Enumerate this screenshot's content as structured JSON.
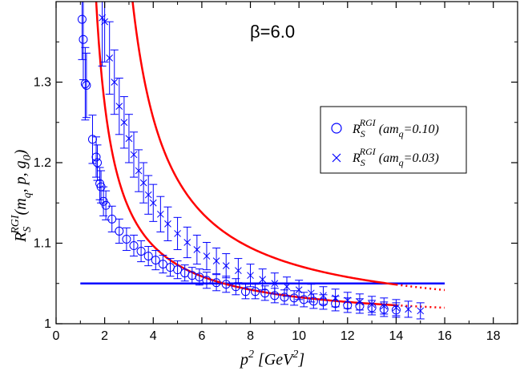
{
  "chart_data": {
    "type": "scatter",
    "title": "",
    "annotation": "β=6.0",
    "xlabel": {
      "base": "p",
      "sup": "2",
      "rest": " [GeV",
      "sup2": "2",
      "close": "]"
    },
    "ylabel": {
      "R": "R",
      "sub": "S",
      "sup": "RGI",
      "args": "(m",
      "args_sub": "q",
      "args_rest": ", p, g",
      "args_sub2": "0",
      "args_close": ")"
    },
    "xlim": [
      0,
      19
    ],
    "ylim": [
      1.0,
      1.4
    ],
    "xticks": [
      "0",
      "2",
      "4",
      "6",
      "8",
      "10",
      "12",
      "14",
      "16",
      "18"
    ],
    "yticks": [
      "1",
      "1.1",
      "1.2",
      "1.3"
    ],
    "ytick_values": [
      1.0,
      1.1,
      1.2,
      1.3
    ],
    "legend_position": "upper-right",
    "legend": [
      {
        "sym": "R",
        "sub": "S",
        "sup": "RGI",
        "label": "(am",
        "label_sub": "q",
        "label_rest": "=0.10)",
        "marker": "circle"
      },
      {
        "sym": "R",
        "sub": "S",
        "sup": "RGI",
        "label": "(am",
        "label_sub": "q",
        "label_rest": "=0.03)",
        "marker": "cross"
      }
    ],
    "colors": {
      "data": "#0000ff",
      "fit": "#ff0000",
      "axis": "#000000"
    },
    "series": [
      {
        "name": "R_S^RGI (am_q=0.10)",
        "marker": "circle",
        "points": [
          [
            1.07,
            1.378,
            0.05
          ],
          [
            1.12,
            1.353,
            0.05
          ],
          [
            1.2,
            1.298,
            0.045
          ],
          [
            1.25,
            1.296,
            0.04
          ],
          [
            1.5,
            1.229,
            0.03
          ],
          [
            1.65,
            1.207,
            0.025
          ],
          [
            1.7,
            1.2,
            0.022
          ],
          [
            1.8,
            1.174,
            0.02
          ],
          [
            1.85,
            1.17,
            0.02
          ],
          [
            1.95,
            1.152,
            0.018
          ],
          [
            2.05,
            1.147,
            0.018
          ],
          [
            2.3,
            1.13,
            0.016
          ],
          [
            2.6,
            1.115,
            0.015
          ],
          [
            2.9,
            1.105,
            0.014
          ],
          [
            3.2,
            1.097,
            0.013
          ],
          [
            3.5,
            1.09,
            0.013
          ],
          [
            3.8,
            1.084,
            0.012
          ],
          [
            4.1,
            1.079,
            0.012
          ],
          [
            4.4,
            1.074,
            0.011
          ],
          [
            4.7,
            1.07,
            0.011
          ],
          [
            5.0,
            1.067,
            0.011
          ],
          [
            5.3,
            1.063,
            0.01
          ],
          [
            5.6,
            1.06,
            0.01
          ],
          [
            5.9,
            1.058,
            0.01
          ],
          [
            6.2,
            1.054,
            0.01
          ],
          [
            6.6,
            1.051,
            0.01
          ],
          [
            7.0,
            1.049,
            0.01
          ],
          [
            7.4,
            1.046,
            0.01
          ],
          [
            7.8,
            1.04,
            0.009
          ],
          [
            8.2,
            1.04,
            0.009
          ],
          [
            8.6,
            1.038,
            0.009
          ],
          [
            9.0,
            1.035,
            0.009
          ],
          [
            9.4,
            1.033,
            0.009
          ],
          [
            9.8,
            1.032,
            0.009
          ],
          [
            10.2,
            1.03,
            0.009
          ],
          [
            10.6,
            1.028,
            0.009
          ],
          [
            11.0,
            1.027,
            0.009
          ],
          [
            11.5,
            1.025,
            0.009
          ],
          [
            12.0,
            1.023,
            0.009
          ],
          [
            12.5,
            1.022,
            0.009
          ],
          [
            13.0,
            1.02,
            0.009
          ],
          [
            13.5,
            1.018,
            0.009
          ],
          [
            14.0,
            1.017,
            0.009
          ]
        ]
      },
      {
        "name": "R_S^RGI (am_q=0.03)",
        "marker": "cross",
        "points": [
          [
            1.9,
            1.38,
            0.06
          ],
          [
            2.0,
            1.375,
            0.05
          ],
          [
            2.2,
            1.33,
            0.045
          ],
          [
            2.4,
            1.3,
            0.04
          ],
          [
            2.6,
            1.27,
            0.035
          ],
          [
            2.8,
            1.25,
            0.032
          ],
          [
            3.0,
            1.23,
            0.03
          ],
          [
            3.2,
            1.21,
            0.028
          ],
          [
            3.4,
            1.19,
            0.026
          ],
          [
            3.6,
            1.175,
            0.025
          ],
          [
            3.8,
            1.16,
            0.024
          ],
          [
            4.0,
            1.15,
            0.023
          ],
          [
            4.3,
            1.136,
            0.022
          ],
          [
            4.6,
            1.124,
            0.021
          ],
          [
            5.0,
            1.112,
            0.02
          ],
          [
            5.4,
            1.101,
            0.019
          ],
          [
            5.8,
            1.092,
            0.018
          ],
          [
            6.2,
            1.084,
            0.017
          ],
          [
            6.6,
            1.078,
            0.016
          ],
          [
            7.0,
            1.072,
            0.015
          ],
          [
            7.5,
            1.066,
            0.015
          ],
          [
            8.0,
            1.06,
            0.014
          ],
          [
            8.5,
            1.055,
            0.013
          ],
          [
            9.0,
            1.05,
            0.013
          ],
          [
            9.5,
            1.046,
            0.012
          ],
          [
            10.0,
            1.042,
            0.012
          ],
          [
            10.5,
            1.038,
            0.011
          ],
          [
            11.0,
            1.035,
            0.011
          ],
          [
            11.5,
            1.032,
            0.011
          ],
          [
            12.0,
            1.029,
            0.01
          ],
          [
            12.5,
            1.027,
            0.01
          ],
          [
            13.0,
            1.024,
            0.01
          ],
          [
            13.5,
            1.022,
            0.01
          ],
          [
            14.0,
            1.02,
            0.01
          ],
          [
            14.5,
            1.018,
            0.01
          ],
          [
            15.0,
            1.016,
            0.01
          ]
        ]
      }
    ],
    "fits": [
      {
        "series": "am_q=0.10",
        "a": 1.0,
        "b": 0.3,
        "c": 0.9,
        "x_solid": [
          1.05,
          14.0
        ],
        "x_dotted": [
          14.0,
          16.0
        ]
      },
      {
        "series": "am_q=0.03",
        "a": 1.0,
        "b": 0.6,
        "c": 1.65,
        "x_solid": [
          1.85,
          14.0
        ],
        "x_dotted": [
          14.0,
          16.0
        ]
      }
    ],
    "hline": {
      "y": 1.05,
      "x_range": [
        1.0,
        16.0
      ]
    }
  }
}
